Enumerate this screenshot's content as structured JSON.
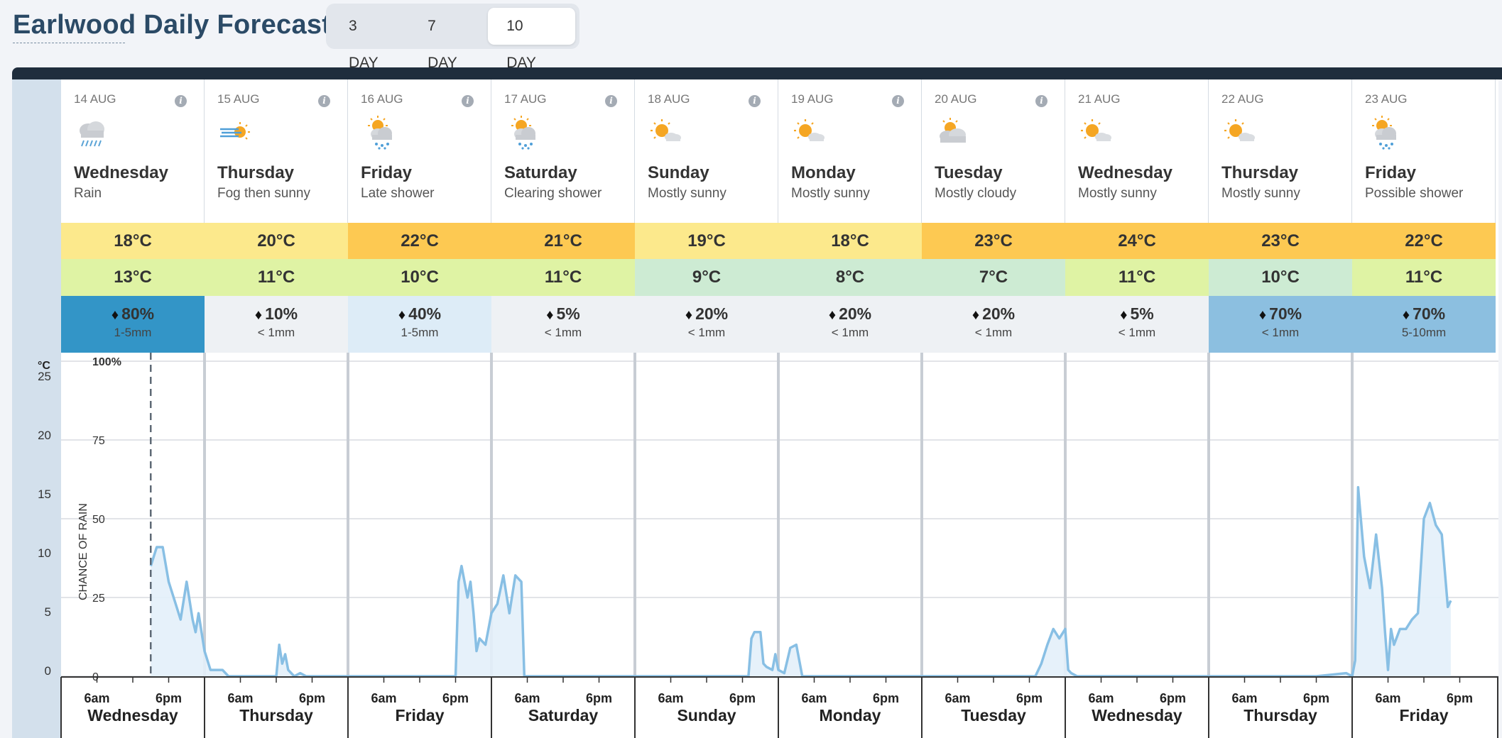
{
  "title": "Earlwood Daily Forecast",
  "tabs": [
    {
      "label": "3 DAY",
      "active": false
    },
    {
      "label": "7 DAY",
      "active": false
    },
    {
      "label": "10 DAY",
      "active": true
    }
  ],
  "days": [
    {
      "date": "14 AUG",
      "name": "Wednesday",
      "summary": "Rain",
      "icon": "rain-cloud-icon",
      "max": "18°C",
      "min": "13°C",
      "rain_chance": "80%",
      "rain_amount": "1-5mm",
      "max_color": "#fce98c",
      "min_color": "#dff3a4",
      "rain_color": "#3395c7",
      "info": true
    },
    {
      "date": "15 AUG",
      "name": "Thursday",
      "summary": "Fog then sunny",
      "icon": "fog-sun-icon",
      "max": "20°C",
      "min": "11°C",
      "rain_chance": "10%",
      "rain_amount": "< 1mm",
      "max_color": "#fce98c",
      "min_color": "#dff3a4",
      "rain_color": "#eef1f4",
      "info": true
    },
    {
      "date": "16 AUG",
      "name": "Friday",
      "summary": "Late shower",
      "icon": "sun-shower-icon",
      "max": "22°C",
      "min": "10°C",
      "rain_chance": "40%",
      "rain_amount": "1-5mm",
      "max_color": "#fdc952",
      "min_color": "#dff3a4",
      "rain_color": "#ddecf7",
      "info": true
    },
    {
      "date": "17 AUG",
      "name": "Saturday",
      "summary": "Clearing shower",
      "icon": "sun-shower-icon",
      "max": "21°C",
      "min": "11°C",
      "rain_chance": "5%",
      "rain_amount": "< 1mm",
      "max_color": "#fdc952",
      "min_color": "#dff3a4",
      "rain_color": "#eef1f4",
      "info": true
    },
    {
      "date": "18 AUG",
      "name": "Sunday",
      "summary": "Mostly sunny",
      "icon": "mostly-sunny-icon",
      "max": "19°C",
      "min": "9°C",
      "rain_chance": "20%",
      "rain_amount": "< 1mm",
      "max_color": "#fce98c",
      "min_color": "#cdebd3",
      "rain_color": "#eef1f4",
      "info": true
    },
    {
      "date": "19 AUG",
      "name": "Monday",
      "summary": "Mostly sunny",
      "icon": "mostly-sunny-icon",
      "max": "18°C",
      "min": "8°C",
      "rain_chance": "20%",
      "rain_amount": "< 1mm",
      "max_color": "#fce98c",
      "min_color": "#cdebd3",
      "rain_color": "#eef1f4",
      "info": true
    },
    {
      "date": "20 AUG",
      "name": "Tuesday",
      "summary": "Mostly cloudy",
      "icon": "mostly-cloudy-icon",
      "max": "23°C",
      "min": "7°C",
      "rain_chance": "20%",
      "rain_amount": "< 1mm",
      "max_color": "#fdc952",
      "min_color": "#cdebd3",
      "rain_color": "#eef1f4",
      "info": true
    },
    {
      "date": "21 AUG",
      "name": "Wednesday",
      "summary": "Mostly sunny",
      "icon": "mostly-sunny-icon",
      "max": "24°C",
      "min": "11°C",
      "rain_chance": "5%",
      "rain_amount": "< 1mm",
      "max_color": "#fdc952",
      "min_color": "#dff3a4",
      "rain_color": "#eef1f4",
      "info": false
    },
    {
      "date": "22 AUG",
      "name": "Thursday",
      "summary": "Mostly sunny",
      "icon": "mostly-sunny-icon",
      "max": "23°C",
      "min": "10°C",
      "rain_chance": "70%",
      "rain_amount": "< 1mm",
      "max_color": "#fdc952",
      "min_color": "#cdebd3",
      "rain_color": "#8cbfe0",
      "info": false
    },
    {
      "date": "23 AUG",
      "name": "Friday",
      "summary": "Possible shower",
      "icon": "sun-shower-icon",
      "max": "22°C",
      "min": "11°C",
      "rain_chance": "70%",
      "rain_amount": "5-10mm",
      "max_color": "#fdc952",
      "min_color": "#dff3a4",
      "rain_color": "#8cbfe0",
      "info": false
    }
  ],
  "chart_data": {
    "type": "area",
    "unit_left": "°C",
    "left_ticks": [
      0,
      5,
      10,
      15,
      20,
      25
    ],
    "right_ticks": [
      {
        "value": 0,
        "label": "0"
      },
      {
        "value": 25,
        "label": "25"
      },
      {
        "value": 50,
        "label": "50"
      },
      {
        "value": 75,
        "label": "75"
      },
      {
        "value": 100,
        "label": "100%"
      }
    ],
    "ylabel": "CHANCE OF RAIN",
    "ylim_rain": [
      0,
      100
    ],
    "ylim_temp": [
      0,
      25
    ],
    "x_hour_labels": [
      "6am",
      "6pm"
    ],
    "now_hour": 15,
    "series": [
      {
        "values": [
          [
            15,
            35
          ],
          [
            16,
            41
          ],
          [
            17,
            41
          ],
          [
            18,
            30
          ],
          [
            19,
            24
          ],
          [
            20,
            18
          ],
          [
            21,
            30
          ],
          [
            22,
            18
          ],
          [
            22.5,
            14
          ],
          [
            23,
            20
          ],
          [
            24,
            8
          ],
          [
            25,
            2
          ],
          [
            26,
            2
          ],
          [
            27,
            2
          ],
          [
            28,
            0
          ],
          [
            29,
            0
          ],
          [
            30,
            0
          ],
          [
            31,
            0
          ],
          [
            32,
            0
          ],
          [
            33,
            0
          ],
          [
            34,
            0
          ],
          [
            35,
            0
          ],
          [
            36,
            0
          ],
          [
            36.5,
            10
          ],
          [
            37,
            4
          ],
          [
            37.5,
            7
          ],
          [
            38,
            2
          ],
          [
            39,
            0
          ],
          [
            40,
            1
          ],
          [
            41,
            0
          ],
          [
            42,
            0
          ],
          [
            43,
            0
          ],
          [
            44,
            0
          ],
          [
            45,
            0
          ],
          [
            46,
            0
          ],
          [
            47,
            0
          ],
          [
            48,
            0
          ],
          [
            50,
            0
          ],
          [
            55,
            0
          ],
          [
            60,
            0
          ],
          [
            65,
            0
          ],
          [
            66,
            0
          ],
          [
            66.5,
            30
          ],
          [
            67,
            35
          ],
          [
            68,
            25
          ],
          [
            68.5,
            30
          ],
          [
            69,
            20
          ],
          [
            69.5,
            8
          ],
          [
            70,
            12
          ],
          [
            71,
            10
          ],
          [
            72,
            20
          ],
          [
            73,
            23
          ],
          [
            74,
            32
          ],
          [
            75,
            20
          ],
          [
            76,
            32
          ],
          [
            77,
            30
          ],
          [
            77.5,
            0
          ],
          [
            78,
            0
          ],
          [
            80,
            0
          ],
          [
            90,
            0
          ],
          [
            100,
            0
          ],
          [
            110,
            0
          ],
          [
            115,
            0
          ],
          [
            115.5,
            12
          ],
          [
            116,
            14
          ],
          [
            117,
            14
          ],
          [
            117.5,
            4
          ],
          [
            118,
            3
          ],
          [
            119,
            2
          ],
          [
            119.5,
            7
          ],
          [
            120,
            2
          ],
          [
            121,
            1
          ],
          [
            122,
            9
          ],
          [
            123,
            10
          ],
          [
            124,
            0
          ],
          [
            125,
            0
          ],
          [
            130,
            0
          ],
          [
            140,
            0
          ],
          [
            150,
            0
          ],
          [
            160,
            0
          ],
          [
            163,
            0
          ],
          [
            164,
            4
          ],
          [
            165,
            10
          ],
          [
            166,
            15
          ],
          [
            167,
            12
          ],
          [
            168,
            15
          ],
          [
            168.5,
            2
          ],
          [
            169,
            1
          ],
          [
            170,
            0
          ],
          [
            180,
            0
          ],
          [
            190,
            0
          ],
          [
            200,
            0
          ],
          [
            210,
            0
          ],
          [
            215,
            1
          ],
          [
            216,
            0
          ],
          [
            216.5,
            5
          ],
          [
            217,
            60
          ],
          [
            218,
            38
          ],
          [
            219,
            28
          ],
          [
            220,
            45
          ],
          [
            221,
            28
          ],
          [
            221.5,
            14
          ],
          [
            222,
            2
          ],
          [
            222.5,
            15
          ],
          [
            223,
            10
          ],
          [
            224,
            15
          ],
          [
            225,
            15
          ],
          [
            226,
            18
          ],
          [
            227,
            20
          ],
          [
            228,
            50
          ],
          [
            229,
            55
          ],
          [
            230,
            48
          ],
          [
            231,
            45
          ],
          [
            232,
            22
          ],
          [
            232.5,
            24
          ]
        ]
      }
    ]
  },
  "axis_days": [
    {
      "name": "Wednesday",
      "h6": "6am",
      "h18": "6pm"
    },
    {
      "name": "Thursday",
      "h6": "6am",
      "h18": "6pm"
    },
    {
      "name": "Friday",
      "h6": "6am",
      "h18": "6pm"
    },
    {
      "name": "Saturday",
      "h6": "6am",
      "h18": "6pm"
    },
    {
      "name": "Sunday",
      "h6": "6am",
      "h18": "6pm"
    },
    {
      "name": "Monday",
      "h6": "6am",
      "h18": "6pm"
    },
    {
      "name": "Tuesday",
      "h6": "6am",
      "h18": "6pm"
    },
    {
      "name": "Wednesday",
      "h6": "6am",
      "h18": "6pm"
    },
    {
      "name": "Thursday",
      "h6": "6am",
      "h18": "6pm"
    },
    {
      "name": "Friday",
      "h6": "6am",
      "h18": "6pm"
    }
  ]
}
